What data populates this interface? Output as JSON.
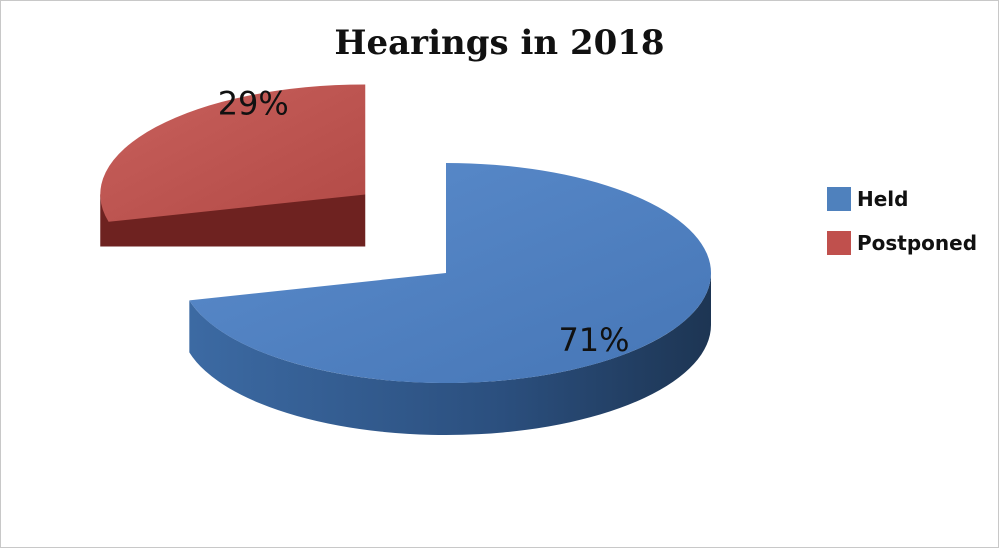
{
  "chart_data": {
    "type": "pie",
    "title": "Hearings in 2018",
    "categories": [
      "Held",
      "Postponed"
    ],
    "values": [
      71,
      29
    ],
    "labels": [
      "71%",
      "29%"
    ],
    "colors": [
      "#4F81BD",
      "#C0504D"
    ],
    "legend_position": "right",
    "style": "3d-exploded"
  }
}
